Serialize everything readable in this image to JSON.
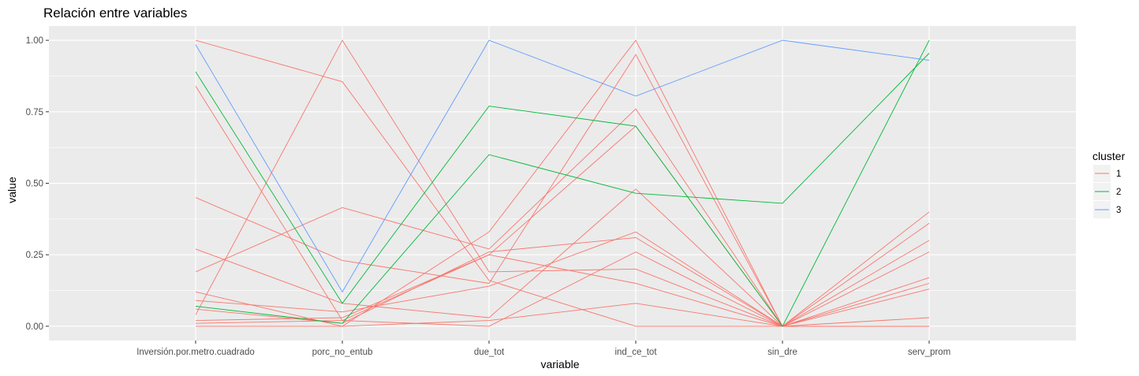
{
  "chart_data": {
    "type": "line",
    "title": "Relación entre variables",
    "xlabel": "variable",
    "ylabel": "value",
    "categories": [
      "Inversión.por.metro.cuadrado",
      "porc_no_entub",
      "due_tot",
      "ind_ce_tot",
      "sin_dre",
      "serv_prom"
    ],
    "ylim": [
      -0.05,
      1.05
    ],
    "yticks": [
      0.0,
      0.25,
      0.5,
      0.75,
      1.0
    ],
    "ytick_labels": [
      "0.00",
      "0.25",
      "0.50",
      "0.75",
      "1.00"
    ],
    "grid": true,
    "panel_background": "#ebebeb",
    "grid_color": "#ffffff",
    "legend": {
      "title": "cluster",
      "position": "right",
      "entries": [
        {
          "label": "1",
          "color": "#f8766d"
        },
        {
          "label": "2",
          "color": "#00ba38"
        },
        {
          "label": "3",
          "color": "#619cff"
        }
      ]
    },
    "series": [
      {
        "cluster": "1",
        "values": [
          1.0,
          0.855,
          0.16,
          0.0,
          0.0,
          0.0
        ]
      },
      {
        "cluster": "1",
        "values": [
          0.84,
          0.02,
          0.25,
          0.7,
          0.0,
          0.4
        ]
      },
      {
        "cluster": "1",
        "values": [
          0.45,
          0.23,
          0.15,
          0.95,
          0.0,
          0.36
        ]
      },
      {
        "cluster": "1",
        "values": [
          0.27,
          0.08,
          0.03,
          0.48,
          0.0,
          0.3
        ]
      },
      {
        "cluster": "1",
        "values": [
          0.19,
          0.415,
          0.27,
          0.76,
          0.0,
          0.26
        ]
      },
      {
        "cluster": "1",
        "values": [
          0.12,
          0.0,
          0.33,
          1.0,
          0.0,
          0.17
        ]
      },
      {
        "cluster": "1",
        "values": [
          0.09,
          0.05,
          0.14,
          0.33,
          0.0,
          0.15
        ]
      },
      {
        "cluster": "1",
        "values": [
          0.06,
          0.01,
          0.26,
          0.31,
          0.0,
          0.13
        ]
      },
      {
        "cluster": "1",
        "values": [
          0.04,
          1.0,
          0.19,
          0.2,
          0.0,
          0.03
        ]
      },
      {
        "cluster": "1",
        "values": [
          0.02,
          0.03,
          0.25,
          0.15,
          0.0,
          0.0
        ]
      },
      {
        "cluster": "1",
        "values": [
          0.0,
          0.0,
          0.02,
          0.08,
          0.0,
          0.0
        ]
      },
      {
        "cluster": "1",
        "values": [
          0.01,
          0.02,
          0.0,
          0.26,
          0.0,
          0.0
        ]
      },
      {
        "cluster": "2",
        "values": [
          0.89,
          0.08,
          0.77,
          0.7,
          0.0,
          1.0
        ]
      },
      {
        "cluster": "2",
        "values": [
          0.07,
          0.01,
          0.6,
          0.465,
          0.43,
          0.955
        ]
      },
      {
        "cluster": "3",
        "values": [
          0.985,
          0.12,
          1.0,
          0.805,
          1.0,
          0.93
        ]
      }
    ]
  }
}
